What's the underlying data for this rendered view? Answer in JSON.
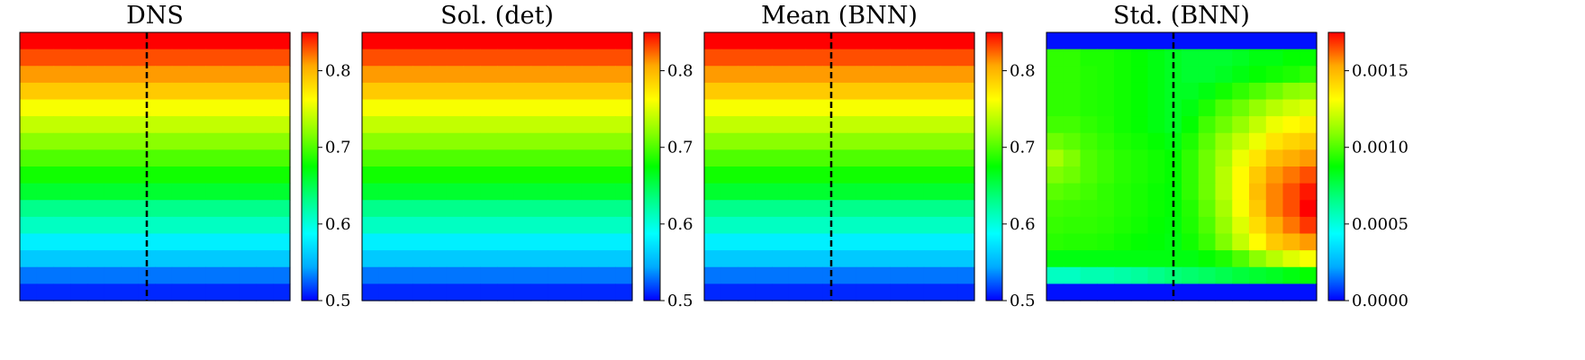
{
  "colormap": [
    "#0000ff",
    "#00aaff",
    "#00ffff",
    "#00ff88",
    "#00ff00",
    "#88ff00",
    "#ffff00",
    "#ffaa00",
    "#ff0000"
  ],
  "dashed_line_color": "#000000",
  "chart_data": [
    {
      "type": "heatmap",
      "title": "DNS",
      "vmin": 0.5,
      "vmax": 0.85,
      "colorbar_ticks": [
        "0.5",
        "0.6",
        "0.7",
        "0.8"
      ],
      "colorbar_tick_values": [
        0.5,
        0.6,
        0.7,
        0.8
      ],
      "n_cols": 16,
      "dashed_vertical_line": true,
      "row_values": [
        0.85,
        0.83,
        0.81,
        0.79,
        0.76,
        0.74,
        0.72,
        0.7,
        0.68,
        0.66,
        0.63,
        0.61,
        0.58,
        0.56,
        0.53,
        0.51
      ]
    },
    {
      "type": "heatmap",
      "title": "Sol. (det)",
      "vmin": 0.5,
      "vmax": 0.85,
      "colorbar_ticks": [
        "0.5",
        "0.6",
        "0.7",
        "0.8"
      ],
      "colorbar_tick_values": [
        0.5,
        0.6,
        0.7,
        0.8
      ],
      "n_cols": 16,
      "dashed_vertical_line": false,
      "row_values": [
        0.85,
        0.83,
        0.81,
        0.79,
        0.76,
        0.74,
        0.72,
        0.7,
        0.68,
        0.66,
        0.63,
        0.61,
        0.58,
        0.56,
        0.53,
        0.51
      ]
    },
    {
      "type": "heatmap",
      "title": "Mean (BNN)",
      "vmin": 0.5,
      "vmax": 0.85,
      "colorbar_ticks": [
        "0.5",
        "0.6",
        "0.7",
        "0.8"
      ],
      "colorbar_tick_values": [
        0.5,
        0.6,
        0.7,
        0.8
      ],
      "n_cols": 16,
      "dashed_vertical_line": true,
      "row_values": [
        0.85,
        0.83,
        0.81,
        0.79,
        0.76,
        0.74,
        0.72,
        0.7,
        0.68,
        0.66,
        0.63,
        0.61,
        0.58,
        0.56,
        0.53,
        0.51
      ]
    },
    {
      "type": "heatmap",
      "title": "Std. (BNN)",
      "vmin": 0.0,
      "vmax": 0.00175,
      "colorbar_ticks": [
        "0.0000",
        "0.0005",
        "0.0010",
        "0.0015"
      ],
      "colorbar_tick_values": [
        0.0,
        0.0005,
        0.001,
        0.0015
      ],
      "n_cols": 16,
      "dashed_vertical_line": true,
      "cells": [
        [
          2e-05,
          2e-05,
          2e-05,
          2e-05,
          2e-05,
          2e-05,
          2e-05,
          2e-05,
          2e-05,
          2e-05,
          2e-05,
          2e-05,
          2e-05,
          2e-05,
          2e-05,
          2e-05
        ],
        [
          0.00095,
          0.00095,
          0.00092,
          0.00092,
          0.0009,
          0.00088,
          0.00085,
          0.00082,
          0.0008,
          0.0008,
          0.0008,
          0.00082,
          0.00085,
          0.00085,
          0.00088,
          0.00088
        ],
        [
          0.00095,
          0.00095,
          0.00093,
          0.00092,
          0.0009,
          0.00088,
          0.00085,
          0.00082,
          0.0008,
          0.0008,
          0.00082,
          0.00085,
          0.00088,
          0.0009,
          0.00092,
          0.00095
        ],
        [
          0.00095,
          0.00095,
          0.00093,
          0.00092,
          0.0009,
          0.00088,
          0.00085,
          0.00082,
          0.00082,
          0.00085,
          0.0009,
          0.00095,
          0.001,
          0.00105,
          0.0011,
          0.00112
        ],
        [
          0.00095,
          0.00095,
          0.00093,
          0.00092,
          0.0009,
          0.00088,
          0.00085,
          0.00082,
          0.00085,
          0.00092,
          0.001,
          0.00105,
          0.00112,
          0.00118,
          0.00122,
          0.00125
        ],
        [
          0.00098,
          0.00098,
          0.00095,
          0.00093,
          0.0009,
          0.00088,
          0.00085,
          0.00082,
          0.00088,
          0.00098,
          0.00105,
          0.00112,
          0.0012,
          0.00128,
          0.00132,
          0.00135
        ],
        [
          0.00105,
          0.00102,
          0.00098,
          0.00095,
          0.00092,
          0.0009,
          0.00088,
          0.00085,
          0.00092,
          0.00102,
          0.00112,
          0.0012,
          0.00128,
          0.00138,
          0.00142,
          0.00145
        ],
        [
          0.00115,
          0.00108,
          0.001,
          0.00097,
          0.00094,
          0.00092,
          0.0009,
          0.00088,
          0.00095,
          0.00105,
          0.00115,
          0.00128,
          0.00138,
          0.00148,
          0.00152,
          0.00155
        ],
        [
          0.00108,
          0.00105,
          0.001,
          0.00097,
          0.00094,
          0.00092,
          0.0009,
          0.00088,
          0.00095,
          0.00105,
          0.00118,
          0.00132,
          0.00145,
          0.00155,
          0.0016,
          0.00165
        ],
        [
          0.00102,
          0.001,
          0.00098,
          0.00095,
          0.00093,
          0.00091,
          0.00089,
          0.00087,
          0.00095,
          0.00105,
          0.00118,
          0.00132,
          0.00148,
          0.00158,
          0.00165,
          0.00172
        ],
        [
          0.00098,
          0.00097,
          0.00096,
          0.00095,
          0.00093,
          0.00091,
          0.00089,
          0.00087,
          0.00093,
          0.00103,
          0.00115,
          0.0013,
          0.00145,
          0.00158,
          0.00165,
          0.00175
        ],
        [
          0.00096,
          0.00095,
          0.00095,
          0.00094,
          0.00092,
          0.0009,
          0.00088,
          0.00086,
          0.00092,
          0.001,
          0.00112,
          0.00125,
          0.0014,
          0.00152,
          0.0016,
          0.00168
        ],
        [
          0.00094,
          0.00093,
          0.00093,
          0.00092,
          0.0009,
          0.00088,
          0.00087,
          0.00085,
          0.0009,
          0.00097,
          0.00108,
          0.0012,
          0.00132,
          0.00145,
          0.0015,
          0.00155
        ],
        [
          0.00085,
          0.00085,
          0.00085,
          0.00085,
          0.00085,
          0.00085,
          0.00085,
          0.00085,
          0.00085,
          0.00088,
          0.00092,
          0.001,
          0.0011,
          0.00118,
          0.00125,
          0.0013
        ],
        [
          0.00055,
          0.00055,
          0.00058,
          0.00058,
          0.0006,
          0.00062,
          0.00065,
          0.00068,
          0.0007,
          0.00072,
          0.00075,
          0.00078,
          0.0008,
          0.00082,
          0.00085,
          0.00088
        ],
        [
          2e-05,
          2e-05,
          2e-05,
          2e-05,
          2e-05,
          2e-05,
          2e-05,
          2e-05,
          2e-05,
          2e-05,
          2e-05,
          2e-05,
          2e-05,
          2e-05,
          2e-05,
          2e-05
        ]
      ]
    }
  ]
}
